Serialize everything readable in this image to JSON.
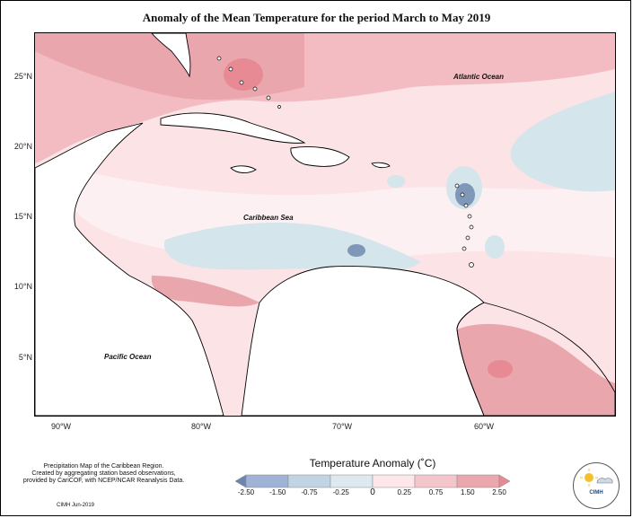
{
  "title": "Anomaly of the Mean Temperature for the period March to May 2019",
  "map": {
    "lat_ticks": [
      "25°N",
      "20°N",
      "15°N",
      "10°N",
      "5°N"
    ],
    "lon_ticks": [
      "90°W",
      "80°W",
      "70°W",
      "60°W"
    ],
    "labels": {
      "atlantic": "Atlantic Ocean",
      "caribbean": "Caribbean Sea",
      "pacific": "Pacific Ocean"
    }
  },
  "legend": {
    "title": "Temperature Anomaly (˚C)",
    "ticks": [
      "-2.50",
      "-1.50",
      "-0.75",
      "-0.25",
      "0",
      "0.25",
      "0.75",
      "1.50",
      "2.50"
    ],
    "colors": [
      "#6f84b3",
      "#9fb3d6",
      "#c0d4e3",
      "#dde9ee",
      "#fde7ea",
      "#f4c6cc",
      "#eba7ae",
      "#e88a94"
    ]
  },
  "credits": {
    "line1": "Precipitation Map of the Caribbean Region.",
    "line2": "Created by aggregating station based observations,",
    "line3": "provided by CariCOF, with NCEP/NCAR Reanalysis Data.",
    "date": "CIMH Jun-2019",
    "logo_text": "CIMH"
  }
}
